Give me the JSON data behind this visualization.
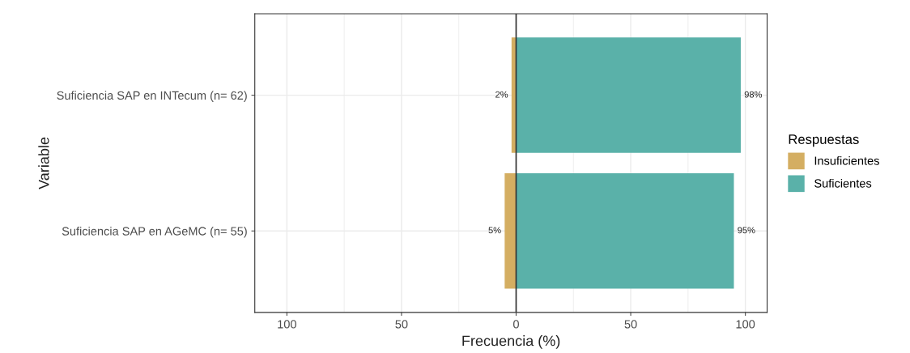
{
  "chart_data": {
    "type": "bar",
    "orientation": "horizontal",
    "xlabel": "Frecuencia (%)",
    "ylabel": "Variable",
    "legend_title": "Respuestas",
    "categories": [
      "Suficiencia SAP en INTecum (n= 62)",
      "Suficiencia SAP en AGeMC (n= 55)"
    ],
    "series": [
      {
        "name": "Insuficientes",
        "color": "#d4ae62",
        "base": [
          -2,
          -5
        ],
        "values": [
          2,
          5
        ],
        "value_labels": [
          "2%",
          "5%"
        ]
      },
      {
        "name": "Suficientes",
        "color": "#5ab1a9",
        "values": [
          98,
          95
        ],
        "value_labels": [
          "98%",
          "95%"
        ]
      }
    ],
    "xlim": [
      -114,
      109.5
    ],
    "xticks": [
      {
        "value": -100,
        "label": "100"
      },
      {
        "value": -50,
        "label": "50"
      },
      0,
      50,
      100
    ],
    "ref_lines": [
      {
        "axis": "x",
        "value": 0,
        "label": null,
        "color": "#333333"
      }
    ],
    "grid": true,
    "legend": "right"
  }
}
